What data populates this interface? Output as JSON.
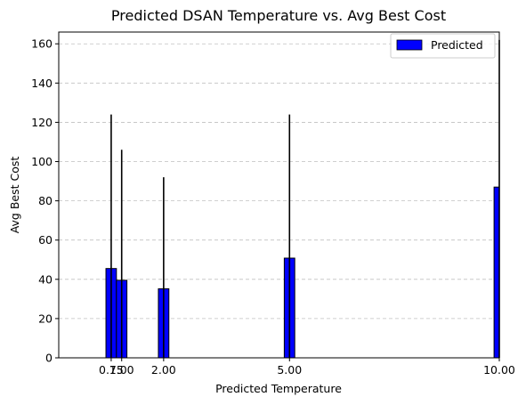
{
  "chart_data": {
    "type": "bar",
    "title": "Predicted DSAN Temperature vs. Avg Best Cost",
    "xlabel": "Predicted Temperature",
    "ylabel": "Avg Best Cost",
    "xlim": [
      -0.5,
      10.0
    ],
    "ylim": [
      0,
      166
    ],
    "xticks": [
      "0.75",
      "1.00",
      "2.00",
      "5.00",
      "10.00"
    ],
    "xtick_values": [
      0.75,
      1.0,
      2.0,
      5.0,
      10.0
    ],
    "yticks": [
      0,
      20,
      40,
      60,
      80,
      100,
      120,
      140,
      160
    ],
    "grid": "y-dashed",
    "legend_position": "top-right",
    "bar_width": 0.25,
    "series": [
      {
        "name": "Predicted",
        "x": [
          0.75,
          1.0,
          2.0,
          5.0,
          10.0
        ],
        "values": [
          45.5,
          39.5,
          35.2,
          50.8,
          87.0
        ],
        "error_upper": [
          124,
          106,
          92,
          124,
          162
        ],
        "error_lower": [
          0,
          0,
          0,
          0,
          0
        ]
      }
    ],
    "colors": {
      "bar": "#0000ff",
      "bar_edge": "#000000",
      "errorbar": "#000000",
      "grid": "#c0c0c0"
    }
  }
}
